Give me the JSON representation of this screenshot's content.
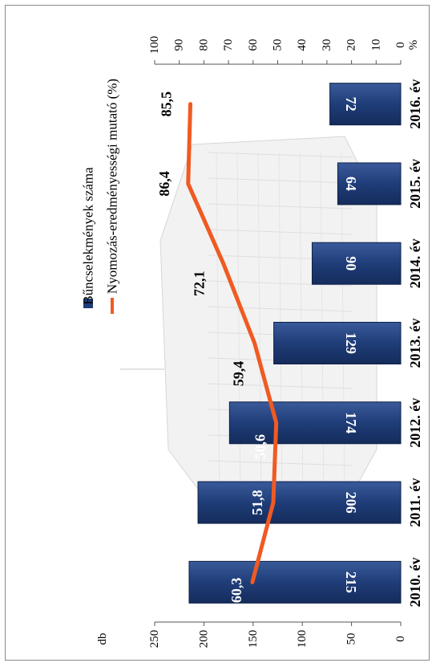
{
  "chart_data": {
    "type": "bar+line",
    "orientation": "rotated-90-cw",
    "categories": [
      "2010. év",
      "2011. év",
      "2012. év",
      "2013. év",
      "2014. év",
      "2015. év",
      "2016. év"
    ],
    "series": [
      {
        "name": "Bűncselekmények száma",
        "type": "bar",
        "axis": "left",
        "color": "#1f3d78",
        "values": [
          215,
          206,
          174,
          129,
          90,
          64,
          72
        ]
      },
      {
        "name": "Nyomozás-eredményességi mutató (%)",
        "type": "line",
        "axis": "right",
        "color": "#f05a22",
        "values": [
          60.3,
          51.8,
          50.6,
          59.4,
          72.1,
          86.4,
          85.5
        ],
        "labels": [
          "60,3",
          "51,8",
          "50,6",
          "59,4",
          "72,1",
          "86,4",
          "85,5"
        ]
      }
    ],
    "y_left": {
      "unit": "db",
      "ylim": [
        0,
        250
      ],
      "ticks": [
        "0",
        "50",
        "100",
        "150",
        "200",
        "250"
      ]
    },
    "y_right": {
      "unit": "%",
      "ylim": [
        0,
        100
      ],
      "ticks": [
        "0",
        "10",
        "20",
        "30",
        "40",
        "50",
        "60",
        "70",
        "80",
        "90",
        "100"
      ]
    },
    "legend_position": "top",
    "grid": false,
    "background": "building-photo"
  }
}
